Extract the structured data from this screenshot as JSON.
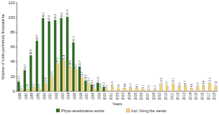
{
  "chart_data": {
    "type": "bar",
    "x_label": "Years",
    "y_label": "Volumes of works performed, thousand ha",
    "categories": [
      "1986",
      "1987",
      "1988",
      "1989",
      "1990",
      "1991",
      "1992",
      "1993",
      "1994",
      "1995",
      "1996",
      "1997",
      "1998",
      "1999",
      "2000",
      "2001",
      "2002",
      "2003",
      "2004",
      "2005",
      "2006",
      "2007",
      "2008",
      "2009",
      "2010",
      "2011",
      "2012",
      "2013",
      "2014",
      "2015",
      "2016",
      "2017",
      "2018"
    ],
    "series": [
      {
        "name": "Phyto-ameliorative works",
        "color": "#2f6b26",
        "values": [
          13.1,
          28.7,
          48.9,
          68.7,
          99.2,
          95.0,
          96.8,
          99.3,
          101.0,
          66.3,
          33.7,
          14.6,
          9.2,
          11.8,
          6.2,
          null,
          null,
          null,
          null,
          null,
          null,
          null,
          null,
          null,
          null,
          null,
          null,
          null,
          null,
          null,
          null,
          null,
          null
        ]
      },
      {
        "name": "Incl. fixing the sands",
        "color": "#f3d27a",
        "values": [
          2.1,
          3.4,
          5.1,
          3.3,
          10.8,
          19.2,
          37.5,
          41.4,
          34.0,
          28.7,
          18.7,
          11.2,
          3.6,
          4.9,
          3.1,
          6.9,
          3.6,
          4.4,
          5.2,
          4.1,
          3.1,
          2.5,
          2.2,
          10.0,
          7.7,
          10.1,
          6.0,
          8.7,
          4.6,
          5.9,
          8.4,
          11.2,
          7.4
        ]
      }
    ],
    "ylim": [
      0,
      120
    ],
    "yticks": [
      0,
      20,
      40,
      60,
      80,
      100,
      120
    ],
    "grid": false,
    "data_labels": true,
    "legend": "bottom"
  }
}
